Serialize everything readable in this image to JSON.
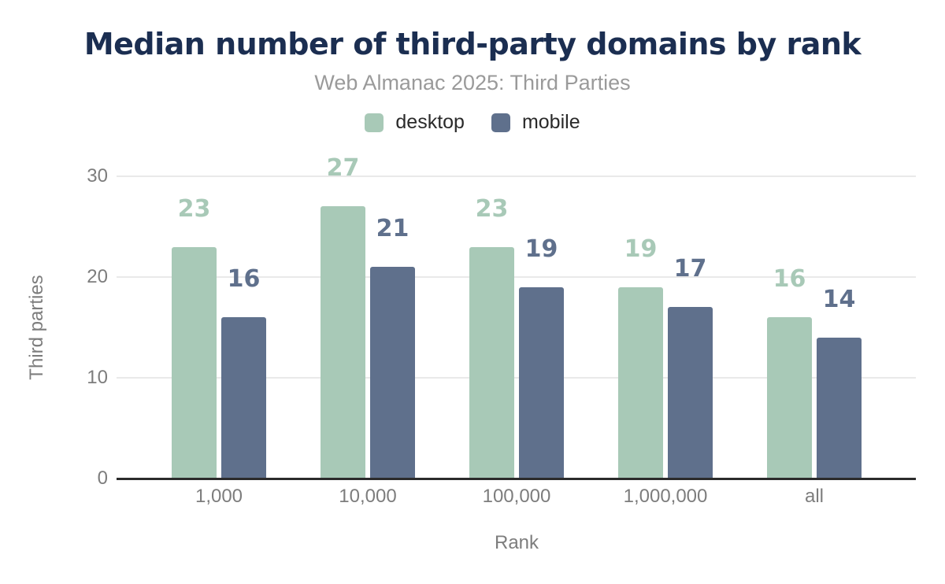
{
  "colors": {
    "title": "#1b2e51",
    "subtitle": "#9a9a9a",
    "axis_text": "#7d7d7d",
    "axis_line": "#2b2b2b",
    "gridline": "#e9e9e9",
    "desktop": "#a8c9b7",
    "mobile": "#5f708c"
  },
  "chart_data": {
    "type": "bar",
    "title": "Median number of third-party domains by rank",
    "subtitle": "Web Almanac 2025: Third Parties",
    "categories": [
      "1,000",
      "10,000",
      "100,000",
      "1,000,000",
      "all"
    ],
    "series": [
      {
        "name": "desktop",
        "color": "#a8c9b7",
        "values": [
          23,
          27,
          23,
          19,
          16
        ]
      },
      {
        "name": "mobile",
        "color": "#5f708c",
        "values": [
          16,
          21,
          19,
          17,
          14
        ]
      }
    ],
    "xlabel": "Rank",
    "ylabel": "Third parties",
    "ylim": [
      0,
      30
    ],
    "yticks": [
      0,
      10,
      20,
      30
    ],
    "grid": true,
    "legend_position": "top",
    "data_labels": true
  }
}
